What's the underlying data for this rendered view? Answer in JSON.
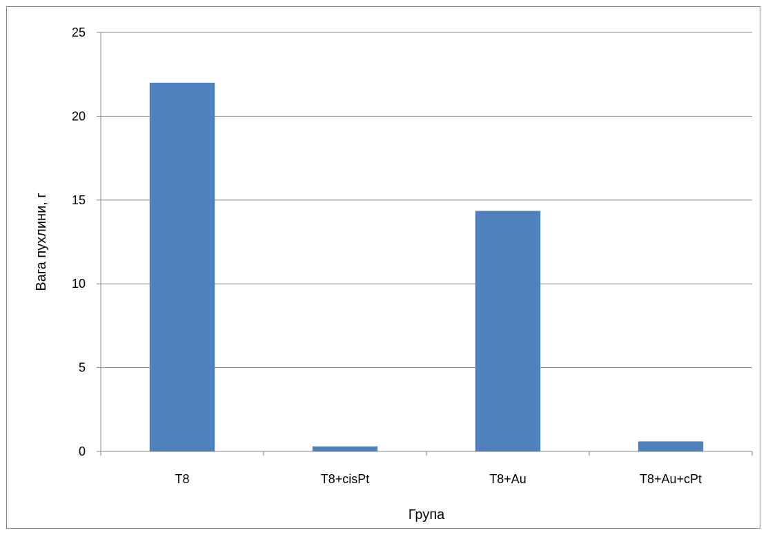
{
  "chart_data": {
    "type": "bar",
    "title": "",
    "xlabel": "Група",
    "ylabel": "Вага пухлини, г",
    "categories": [
      "T8",
      "T8+cisPt",
      "T8+Au",
      "T8+Au+cPt"
    ],
    "series": [
      {
        "values": [
          22.0,
          0.3,
          14.35,
          0.6
        ],
        "color": "#4f81bd"
      }
    ],
    "ylim": [
      0,
      25
    ],
    "yticks": [
      0,
      5,
      10,
      15,
      20,
      25
    ],
    "grid": true,
    "legend": "none"
  }
}
